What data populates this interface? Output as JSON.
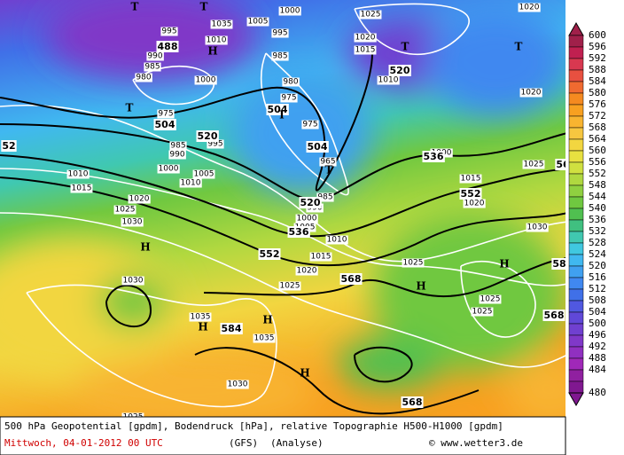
{
  "map": {
    "pressure_labels": [
      "1035",
      "1005",
      "1000",
      "995",
      "1010",
      "995",
      "990",
      "985",
      "980",
      "1000",
      "985",
      "980",
      "975",
      "975",
      "975",
      "985",
      "990",
      "995",
      "1000",
      "1005",
      "1010",
      "1010",
      "1015",
      "1020",
      "1025",
      "1030",
      "1025",
      "1020",
      "1015",
      "1010",
      "1020",
      "1020",
      "1025",
      "1015",
      "1020",
      "1030",
      "1000",
      "965",
      "985",
      "990",
      "1000",
      "1005",
      "1010",
      "1015",
      "1020",
      "1025",
      "1025",
      "1025",
      "1025",
      "1030",
      "1035",
      "1035",
      "1030",
      "1025"
    ],
    "height_labels": [
      "488",
      "504",
      "520",
      "504",
      "504",
      "520",
      "536",
      "552",
      "520",
      "536",
      "552",
      "568",
      "584",
      "568",
      "568",
      "58",
      "52",
      "56"
    ],
    "centers": [
      "T",
      "T",
      "H",
      "T",
      "T",
      "T",
      "T",
      "T",
      "H",
      "H",
      "H",
      "H",
      "H",
      "H"
    ]
  },
  "colorbar": {
    "levels": [
      600,
      596,
      592,
      588,
      584,
      580,
      576,
      572,
      568,
      564,
      560,
      556,
      552,
      548,
      544,
      540,
      536,
      532,
      528,
      524,
      520,
      516,
      512,
      508,
      504,
      500,
      496,
      492,
      488,
      484,
      480
    ],
    "colors": [
      "#a0204a",
      "#c02050",
      "#d83850",
      "#e85040",
      "#f06a30",
      "#f58a20",
      "#f8a020",
      "#f8b430",
      "#f6c640",
      "#f2d640",
      "#e8e040",
      "#d0e040",
      "#b0d840",
      "#90d040",
      "#70c840",
      "#50c050",
      "#40c080",
      "#40c8b0",
      "#40c8e0",
      "#40b8f0",
      "#40a0f0",
      "#4088f0",
      "#4070e8",
      "#5058e0",
      "#6048d8",
      "#7040d0",
      "#8038c8",
      "#9030c0",
      "#a028b8",
      "#9020a0",
      "#801890"
    ]
  },
  "footer": {
    "description": "500 hPa Geopotential [gpdm], Bodendruck [hPa], relative Topographie H500-H1000 [gpdm]",
    "date": "Mittwoch, 04-01-2012  00 UTC",
    "model": "(GFS)",
    "run": "(Analyse)",
    "credit": "© www.wetter3.de"
  }
}
